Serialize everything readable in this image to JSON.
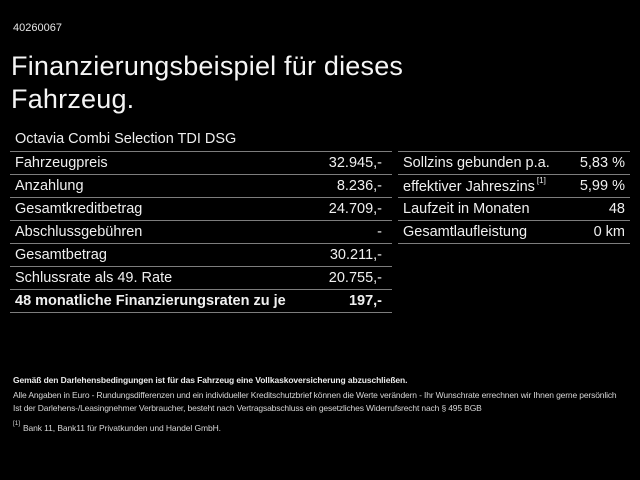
{
  "page": {
    "id_number": "40260067",
    "title_line1": "Finanzierungsbeispiel für dieses",
    "title_line2": "Fahrzeug.",
    "subtitle": "Octavia Combi Selection TDI DSG"
  },
  "left_table": {
    "rows": [
      {
        "label": "Fahrzeugpreis",
        "value": "32.945,-"
      },
      {
        "label": "Anzahlung",
        "value": "8.236,-"
      },
      {
        "label": "Gesamtkreditbetrag",
        "value": "24.709,-"
      },
      {
        "label": "Abschlussgebühren",
        "value": "-"
      },
      {
        "label": "Gesamtbetrag",
        "value": "30.211,-"
      },
      {
        "label": "Schlussrate als 49. Rate",
        "value": "20.755,-"
      },
      {
        "label": "48 monatliche Finanzierungsraten zu je",
        "value": "197,-"
      }
    ]
  },
  "right_table": {
    "rows": [
      {
        "label": "Sollzins gebunden p.a.",
        "sup": "",
        "value": "5,83 %"
      },
      {
        "label": "effektiver Jahreszins",
        "sup": "[1]",
        "value": "5,99 %"
      },
      {
        "label": "Laufzeit in Monaten",
        "sup": "",
        "value": "48"
      },
      {
        "label": "Gesamtlaufleistung",
        "sup": "",
        "value": "0 km"
      }
    ]
  },
  "footer": {
    "line1_bold": "Gemäß den Darlehensbedingungen ist für das Fahrzeug eine Vollkaskoversicherung abzuschließen.",
    "line2": "Alle Angaben in Euro - Rundungsdifferenzen und ein individueller Kreditschutzbrief können die Werte verändern - Ihr Wunschrate errechnen wir Ihnen gerne persönlich",
    "line3": "Ist der Darlehens-/Leasingnehmer Verbraucher, besteht nach Vertragsabschluss ein gesetzliches Widerrufsrecht nach § 495 BGB",
    "footnote_marker": "[1]",
    "footnote_text": "Bank 11, Bank11 für Privatkunden und Handel GmbH."
  },
  "colors": {
    "background": "#000000",
    "text": "#f2f2f2",
    "divider": "#7d7d7d"
  }
}
